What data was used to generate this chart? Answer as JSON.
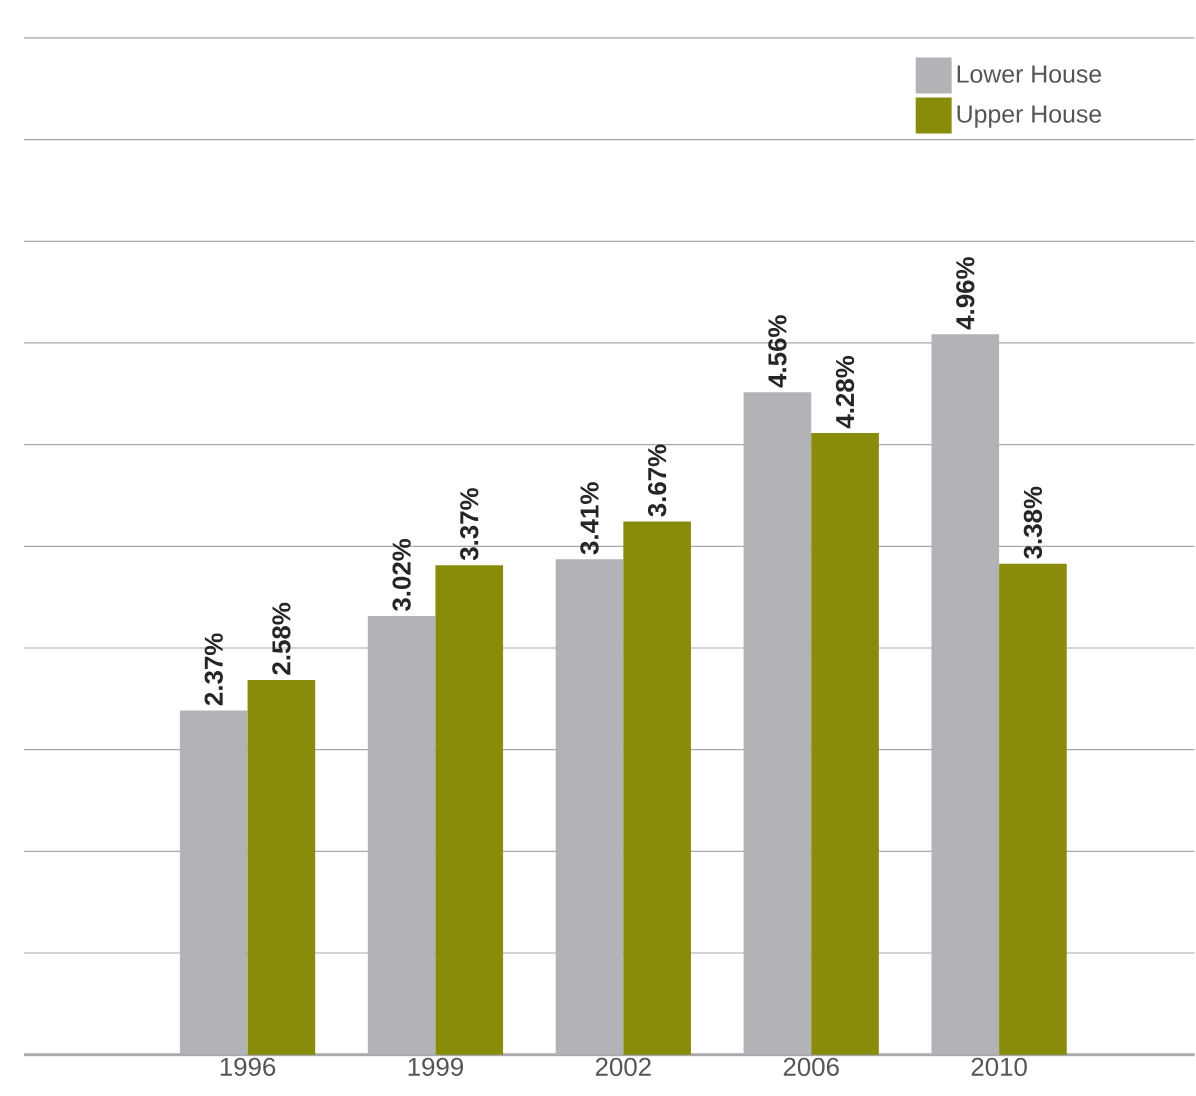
{
  "chart_data": {
    "type": "bar",
    "categories": [
      "1996",
      "1999",
      "2002",
      "2006",
      "2010"
    ],
    "series": [
      {
        "name": "Lower House",
        "color": "#b2b3b7",
        "values": [
          2.37,
          3.02,
          3.41,
          4.56,
          4.96
        ],
        "value_labels": [
          "2.37%",
          "3.02%",
          "3.41%",
          "4.56%",
          "4.96%"
        ]
      },
      {
        "name": "Upper House",
        "color": "#898c0a",
        "values": [
          2.58,
          3.37,
          3.67,
          4.28,
          3.38
        ],
        "value_labels": [
          "2.58%",
          "3.37%",
          "3.67%",
          "4.28%",
          "3.38%"
        ]
      }
    ],
    "ylim": [
      0,
      7
    ],
    "yticks": [
      {
        "value": 0,
        "label": null
      },
      {
        "value": 0.7,
        "label": null
      },
      {
        "value": 1.4,
        "label": null
      },
      {
        "value": 2.1,
        "label": null
      },
      {
        "value": 2.8,
        "label": null
      },
      {
        "value": 3.5,
        "label": null
      },
      {
        "value": 4.2,
        "label": null
      },
      {
        "value": 4.9,
        "label": null
      },
      {
        "value": 5.6,
        "label": null
      },
      {
        "value": 6.3,
        "label": null
      },
      {
        "value": 7.0,
        "label": null
      }
    ],
    "tick_labels": "x",
    "grid": "y",
    "legend": "top right"
  }
}
